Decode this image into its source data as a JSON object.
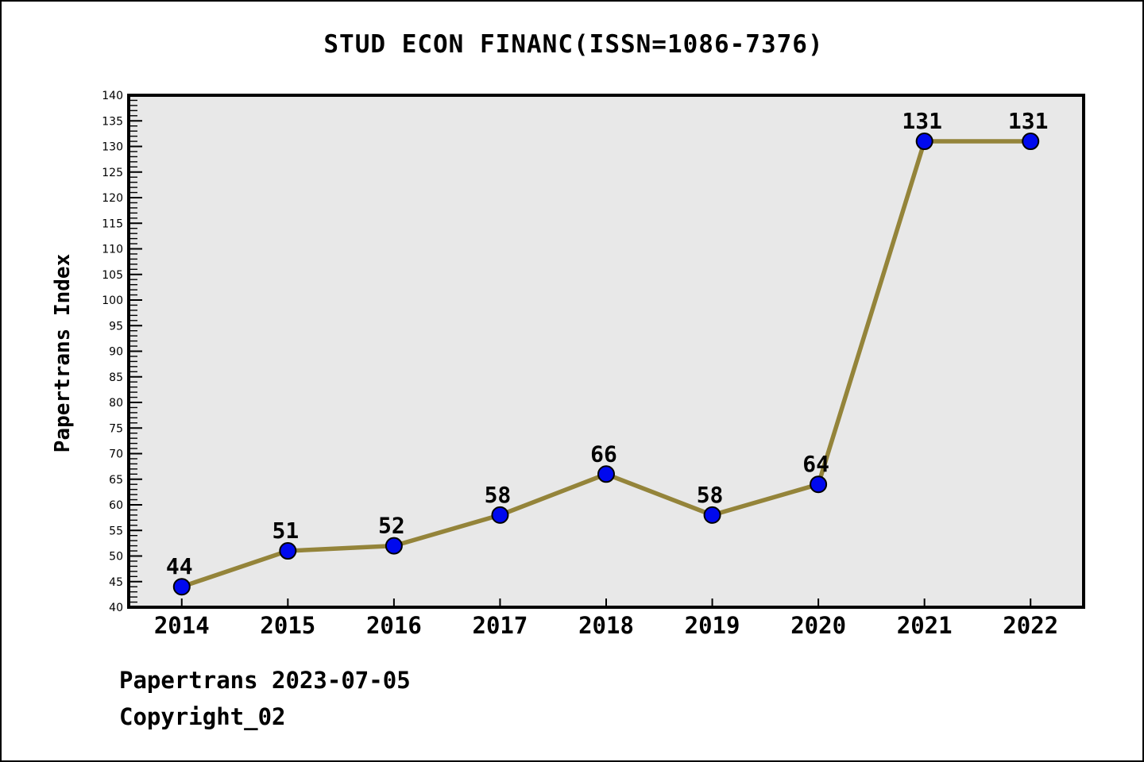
{
  "page": {
    "footer_line1": "Papertrans 2023-07-05",
    "footer_line2": "Copyright_02"
  },
  "chart_data": {
    "type": "line",
    "title": "STUD ECON FINANC(ISSN=1086-7376)",
    "xlabel": "",
    "ylabel": "Papertrans Index",
    "x": [
      2014,
      2015,
      2016,
      2017,
      2018,
      2019,
      2020,
      2021,
      2022
    ],
    "values": [
      44,
      51,
      52,
      58,
      66,
      58,
      64,
      131,
      131
    ],
    "data_labels_shown": true,
    "xlim": [
      2013.5,
      2022.5
    ],
    "ylim": [
      40,
      140
    ],
    "y_major_step": 5,
    "y_minor_step": 1,
    "grid": false,
    "legend": "none",
    "colors": {
      "line": "#94843a",
      "marker_fill": "#0009ee",
      "marker_edge": "#000000",
      "plot_background": "#e8e8e8",
      "axis": "#000000",
      "text": "#000000"
    }
  }
}
